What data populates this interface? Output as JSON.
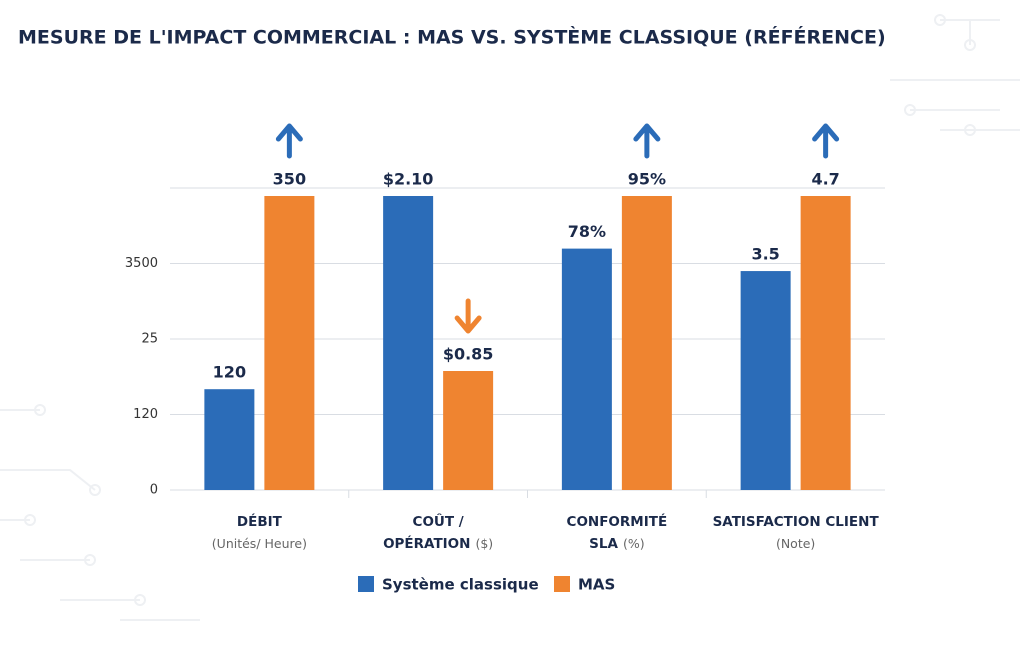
{
  "chart_data": {
    "type": "bar",
    "title": "MESURE DE L'IMPACT COMMERCIAL : MAS VS. SYSTÈME CLASSIQUE (RÉFÉRENCE)",
    "categories": [
      [
        "DÉBIT"
      ],
      [
        "COÛT /",
        "OPÉRATION"
      ],
      [
        "CONFORMITÉ",
        "SLA"
      ],
      [
        "SATISFACTION CLIENT"
      ]
    ],
    "category_units": [
      "(Unités/ Heure)",
      "($)",
      "(%)",
      "(Note)"
    ],
    "y_axis_labels": [
      "0",
      "120",
      "25",
      "3500"
    ],
    "grid": true,
    "series": [
      {
        "name": "Système classique",
        "color": "#2b6cb8",
        "values": [
          120,
          2.1,
          78,
          3.5
        ],
        "value_labels": [
          "120",
          "$2.10",
          "78%",
          "3.5"
        ]
      },
      {
        "name": "MAS",
        "color": "#ef8430",
        "values": [
          350,
          0.85,
          95,
          4.7
        ],
        "value_labels": [
          "350",
          "$0.85",
          "95%",
          "4.7"
        ],
        "trend": [
          "up",
          "down",
          "up",
          "up"
        ]
      }
    ]
  }
}
